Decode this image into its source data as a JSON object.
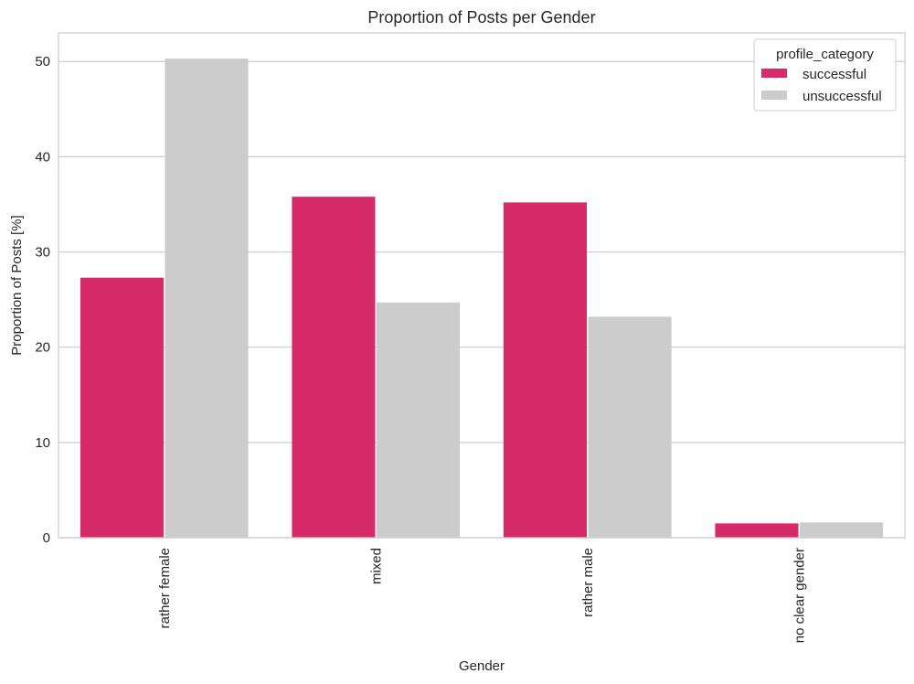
{
  "chart_data": {
    "type": "bar",
    "title": "Proportion of Posts per Gender",
    "xlabel": "Gender",
    "ylabel": "Proportion of Posts [%]",
    "categories": [
      "rather female",
      "mixed",
      "rather male",
      "no clear gender"
    ],
    "series": [
      {
        "name": "successful",
        "color": "#d62a69",
        "values": [
          27.3,
          35.8,
          35.2,
          1.5
        ]
      },
      {
        "name": "unsuccessful",
        "color": "#cccccc",
        "values": [
          50.3,
          24.7,
          23.2,
          1.6
        ]
      }
    ],
    "ylim": [
      0,
      53
    ],
    "yticks": [
      0,
      10,
      20,
      30,
      40,
      50
    ],
    "grid": "horizontal",
    "legend": {
      "title": "profile_category",
      "placement": "top-right"
    }
  }
}
